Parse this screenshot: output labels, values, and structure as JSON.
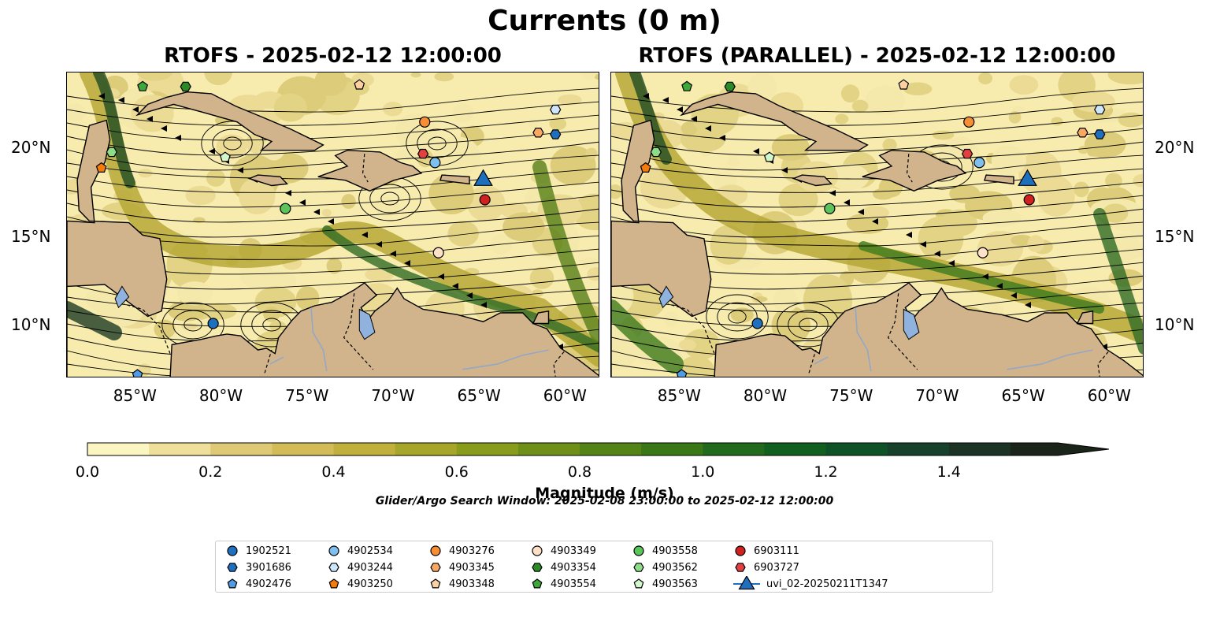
{
  "figure": {
    "title": "Currents (0 m)",
    "left_panel_title": "RTOFS - 2025-02-12 12:00:00",
    "right_panel_title": "RTOFS (PARALLEL) - 2025-02-12 12:00:00",
    "search_window": "Glider/Argo Search Window: 2025-02-08 23:00:00 to 2025-02-12 12:00:00"
  },
  "map_axes": {
    "lon_ticks": [
      "85°W",
      "80°W",
      "75°W",
      "70°W",
      "65°W",
      "60°W"
    ],
    "lat_ticks": [
      "20°N",
      "15°N",
      "10°N"
    ],
    "lon_range": [
      -89,
      -58
    ],
    "lat_range": [
      7,
      24.3
    ]
  },
  "colorbar": {
    "label": "Magnitude (m/s)",
    "ticks": [
      "0.0",
      "0.2",
      "0.4",
      "0.6",
      "0.8",
      "1.0",
      "1.2",
      "1.4"
    ],
    "colors": [
      "#fbf5c2",
      "#eedf9a",
      "#dfc976",
      "#d3bb58",
      "#c1b13c",
      "#a5a62a",
      "#8a9c1c",
      "#6f9018",
      "#548416",
      "#3a7717",
      "#226b1e",
      "#12601f",
      "#0f5227",
      "#17412a",
      "#1c3224",
      "#1a2418"
    ],
    "range": [
      0.0,
      1.5
    ]
  },
  "colors": {
    "land": "#d2b48c",
    "lake": "#8fb2df",
    "ocean_low": "#f7ebae",
    "ocean_mid": "#b3a531",
    "ocean_high": "#1d3b23"
  },
  "legend": [
    {
      "label": "1902521",
      "color": "#1f6fbf",
      "marker": "circle"
    },
    {
      "label": "3901686",
      "color": "#1f6fbf",
      "marker": "hexagon"
    },
    {
      "label": "4902476",
      "color": "#4f9be6",
      "marker": "pentagon"
    },
    {
      "label": "4902534",
      "color": "#7fbfee",
      "marker": "circle"
    },
    {
      "label": "4903244",
      "color": "#cde6fb",
      "marker": "hexagon"
    },
    {
      "label": "4903250",
      "color": "#f57b0b",
      "marker": "pentagon"
    },
    {
      "label": "4903276",
      "color": "#f68e35",
      "marker": "circle"
    },
    {
      "label": "4903345",
      "color": "#f8a862",
      "marker": "hexagon"
    },
    {
      "label": "4903348",
      "color": "#fbd1a3",
      "marker": "pentagon"
    },
    {
      "label": "4903349",
      "color": "#fde0c6",
      "marker": "circle"
    },
    {
      "label": "4903354",
      "color": "#2c8a26",
      "marker": "hexagon"
    },
    {
      "label": "4903554",
      "color": "#3da838",
      "marker": "pentagon"
    },
    {
      "label": "4903558",
      "color": "#5bc45a",
      "marker": "circle"
    },
    {
      "label": "4903562",
      "color": "#8edc89",
      "marker": "hexagon"
    },
    {
      "label": "4903563",
      "color": "#d2f7cb",
      "marker": "pentagon"
    },
    {
      "label": "6903111",
      "color": "#d02020",
      "marker": "circle"
    },
    {
      "label": "6903727",
      "color": "#e04040",
      "marker": "hexagon"
    },
    {
      "label": "uvi_02-20250211T1347",
      "color": "#1f6fbf",
      "marker": "triangle"
    }
  ],
  "platforms_left": [
    {
      "id": "1902521",
      "lon": -80.5,
      "lat": 10.1
    },
    {
      "id": "3901686",
      "lon": -60.6,
      "lat": 20.8
    },
    {
      "id": "4902476",
      "lon": -84.9,
      "lat": 7.2
    },
    {
      "id": "4902534",
      "lon": -67.6,
      "lat": 19.2
    },
    {
      "id": "4903244",
      "lon": -60.6,
      "lat": 22.2
    },
    {
      "id": "4903250",
      "lon": -87.0,
      "lat": 18.9
    },
    {
      "id": "4903276",
      "lon": -68.2,
      "lat": 21.5
    },
    {
      "id": "4903345",
      "lon": -61.6,
      "lat": 20.9
    },
    {
      "id": "4903348",
      "lon": -72.0,
      "lat": 23.6
    },
    {
      "id": "4903349",
      "lon": -67.4,
      "lat": 14.1
    },
    {
      "id": "4903354",
      "lon": -82.1,
      "lat": 23.5
    },
    {
      "id": "4903554",
      "lon": -84.6,
      "lat": 23.5
    },
    {
      "id": "4903558",
      "lon": -76.3,
      "lat": 16.6
    },
    {
      "id": "4903562",
      "lon": -86.4,
      "lat": 19.8
    },
    {
      "id": "4903563",
      "lon": -79.8,
      "lat": 19.5
    },
    {
      "id": "6903111",
      "lon": -64.7,
      "lat": 17.1
    },
    {
      "id": "6903727",
      "lon": -68.3,
      "lat": 19.7
    },
    {
      "id": "uvi_02-20250211T1347",
      "lon": -64.8,
      "lat": 18.2
    }
  ]
}
